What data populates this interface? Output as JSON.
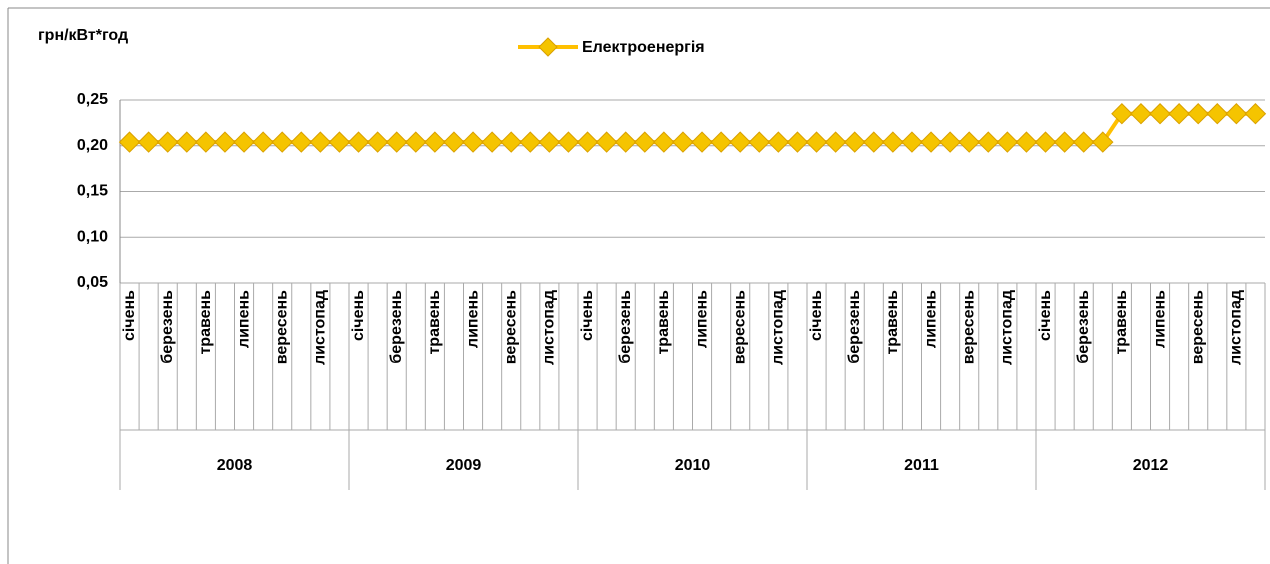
{
  "chart_data": {
    "type": "line",
    "ylabel": "грн/кВт*год",
    "categories": [
      "січень",
      null,
      "березень",
      null,
      "травень",
      null,
      "липень",
      null,
      "вересень",
      null,
      "листопад",
      null,
      "січень",
      null,
      "березень",
      null,
      "травень",
      null,
      "липень",
      null,
      "вересень",
      null,
      "листопад",
      null,
      "січень",
      null,
      "березень",
      null,
      "травень",
      null,
      "липень",
      null,
      "вересень",
      null,
      "листопад",
      null,
      "січень",
      null,
      "березень",
      null,
      "травень",
      null,
      "липень",
      null,
      "вересень",
      null,
      "листопад",
      null,
      "січень",
      null,
      "березень",
      null,
      "травень",
      null,
      "липень",
      null,
      "вересень",
      null,
      "листопад",
      null
    ],
    "years": [
      "2008",
      "2009",
      "2010",
      "2011",
      "2012"
    ],
    "series": [
      {
        "name": "Електроенергія",
        "color": "#FFC000",
        "values": [
          0.204,
          0.204,
          0.204,
          0.204,
          0.204,
          0.204,
          0.204,
          0.204,
          0.204,
          0.204,
          0.204,
          0.204,
          0.204,
          0.204,
          0.204,
          0.204,
          0.204,
          0.204,
          0.204,
          0.204,
          0.204,
          0.204,
          0.204,
          0.204,
          0.204,
          0.204,
          0.204,
          0.204,
          0.204,
          0.204,
          0.204,
          0.204,
          0.204,
          0.204,
          0.204,
          0.204,
          0.204,
          0.204,
          0.204,
          0.204,
          0.204,
          0.204,
          0.204,
          0.204,
          0.204,
          0.204,
          0.204,
          0.204,
          0.204,
          0.204,
          0.204,
          0.204,
          0.235,
          0.235,
          0.235,
          0.235,
          0.235,
          0.235,
          0.235,
          0.235
        ]
      }
    ],
    "ylim": [
      0.05,
      0.25
    ],
    "yticks": [
      {
        "value": 0.05,
        "label": "0,05"
      },
      {
        "value": 0.1,
        "label": "0,10"
      },
      {
        "value": 0.15,
        "label": "0,15"
      },
      {
        "value": 0.2,
        "label": "0,20"
      },
      {
        "value": 0.25,
        "label": "0,25"
      }
    ],
    "grid": true,
    "legend": "top"
  }
}
